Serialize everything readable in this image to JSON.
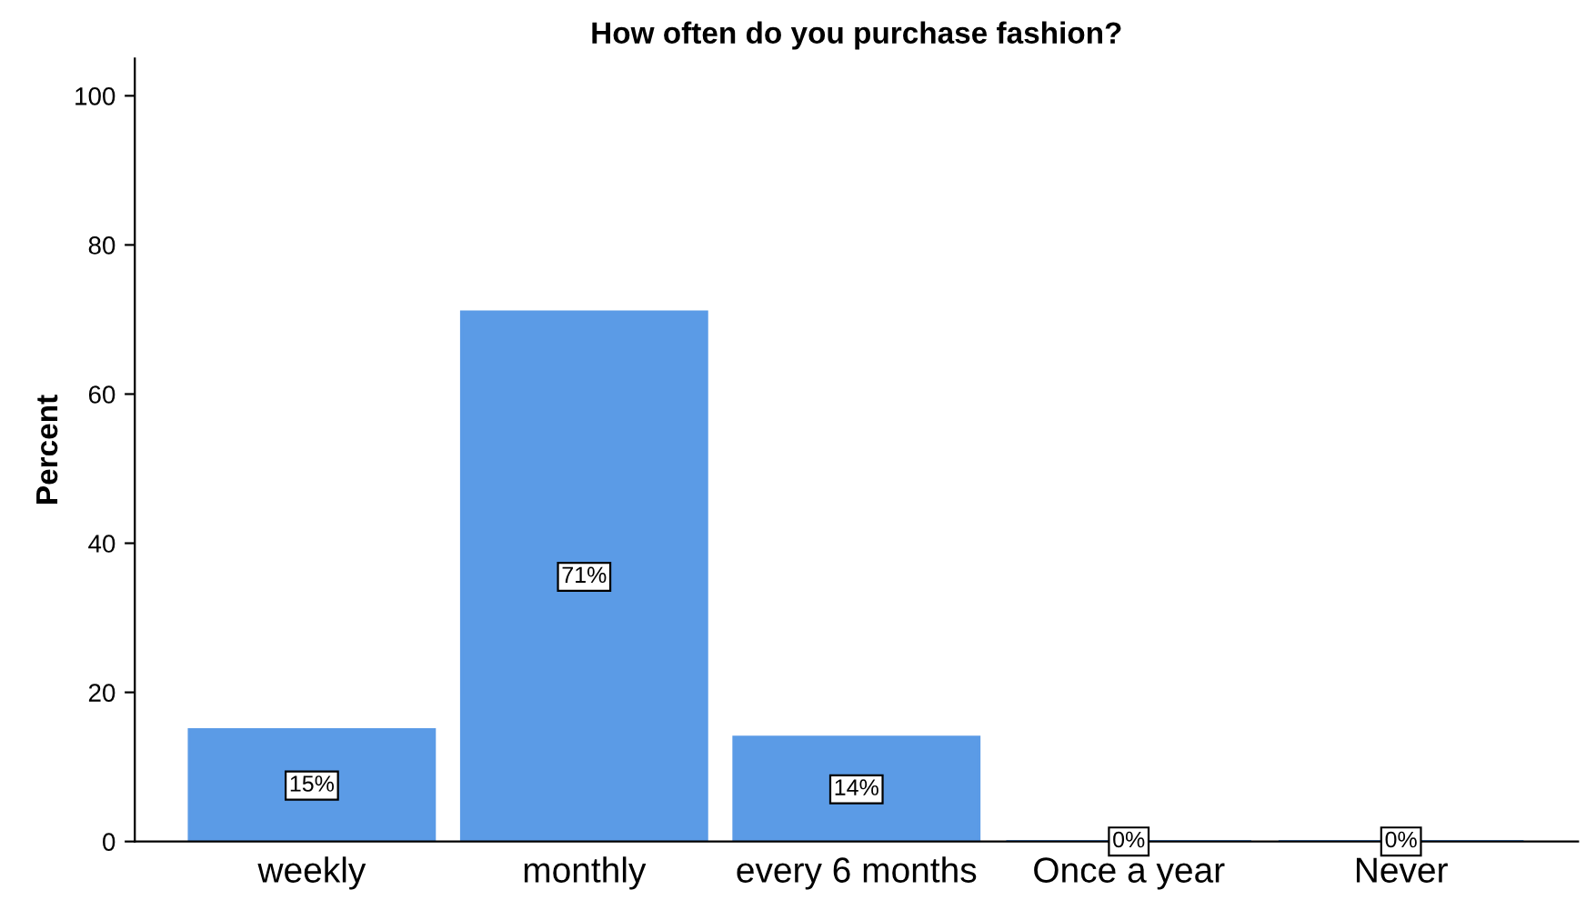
{
  "chart_data": {
    "type": "bar",
    "title": "How often do you purchase fashion?",
    "ylabel": "Percent",
    "categories": [
      "weekly",
      "monthly",
      "every 6 months",
      "Once a year",
      "Never"
    ],
    "values": [
      15,
      71,
      14,
      0,
      0
    ],
    "value_labels": [
      "15%",
      "71%",
      "14%",
      "0%",
      "0%"
    ],
    "color": "#5b9be6",
    "ylim": [
      0,
      105
    ],
    "yticks": [
      0,
      20,
      40,
      60,
      80,
      100
    ],
    "grid": false,
    "legend": false
  }
}
